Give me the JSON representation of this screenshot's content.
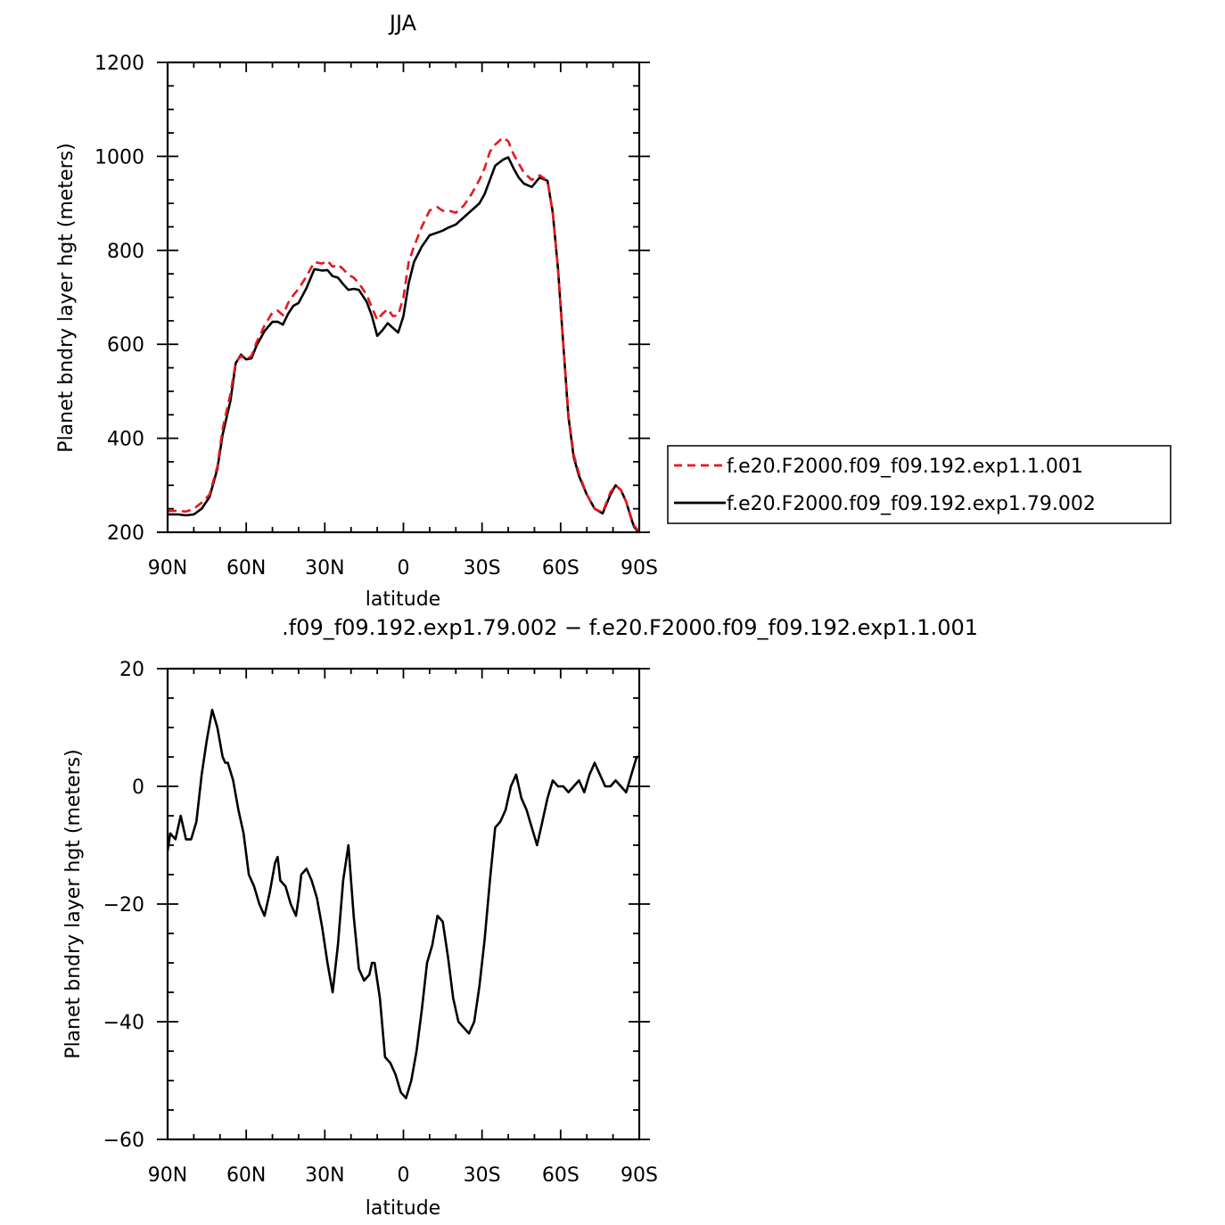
{
  "colors": {
    "case_a": "#e8161c",
    "case_b": "#000000",
    "axis": "#000000",
    "background": "#ffffff"
  },
  "chart_data": [
    {
      "type": "line",
      "title": "JJA",
      "xlabel": "latitude",
      "ylabel": "Planet bndry layer hgt (meters)",
      "xlim": [
        -90,
        90
      ],
      "ylim": [
        200,
        1200
      ],
      "xticks": [
        -90,
        -60,
        -30,
        0,
        30,
        60,
        90
      ],
      "xtick_labels": [
        "90N",
        "60N",
        "30N",
        "0",
        "30S",
        "60S",
        "90S"
      ],
      "yticks": [
        200,
        400,
        600,
        800,
        1000,
        1200
      ],
      "ytick_labels": [
        "200",
        "400",
        "600",
        "800",
        "1000",
        "1200"
      ],
      "grid": false,
      "legend": "right",
      "series": [
        {
          "name": "f.e20.F2000.f09_f09.192.exp1.1.001",
          "style": "dashed",
          "x": [
            -90,
            -86,
            -83,
            -80,
            -77,
            -74,
            -71,
            -69,
            -66,
            -64,
            -62,
            -60,
            -58,
            -56,
            -53,
            -50,
            -48,
            -46,
            -44,
            -42,
            -40,
            -37,
            -34,
            -31,
            -29,
            -27,
            -25,
            -23,
            -21,
            -19,
            -17,
            -14,
            -12,
            -10,
            -8,
            -6,
            -4,
            -2,
            0,
            2,
            4,
            7,
            10,
            13,
            15,
            17,
            20,
            23,
            26,
            29,
            31,
            33,
            35,
            38,
            40,
            42,
            44,
            46,
            49,
            52,
            55,
            57,
            59,
            61,
            63,
            65,
            67,
            70,
            73,
            76,
            79,
            81,
            83,
            85,
            87,
            88,
            90
          ],
          "values": [
            245,
            246,
            244,
            250,
            263,
            280,
            340,
            420,
            495,
            562,
            575,
            568,
            575,
            605,
            640,
            668,
            672,
            662,
            688,
            705,
            718,
            745,
            775,
            772,
            778,
            765,
            770,
            760,
            748,
            742,
            730,
            705,
            678,
            652,
            665,
            675,
            660,
            662,
            700,
            775,
            808,
            850,
            885,
            892,
            884,
            885,
            880,
            895,
            920,
            950,
            975,
            1010,
            1025,
            1040,
            1032,
            1005,
            985,
            965,
            950,
            960,
            948,
            880,
            760,
            600,
            450,
            365,
            325,
            280,
            250,
            242,
            285,
            300,
            290,
            265,
            230,
            215,
            200
          ]
        },
        {
          "name": "f.e20.F2000.f09_f09.192.exp1.79.002",
          "style": "solid",
          "x": [
            -90,
            -86,
            -83,
            -80,
            -77,
            -74,
            -71,
            -69,
            -66,
            -64,
            -62,
            -60,
            -58,
            -56,
            -53,
            -50,
            -48,
            -46,
            -44,
            -42,
            -40,
            -37,
            -34,
            -31,
            -29,
            -27,
            -25,
            -23,
            -21,
            -19,
            -17,
            -14,
            -12,
            -10,
            -8,
            -6,
            -4,
            -2,
            0,
            2,
            4,
            7,
            10,
            13,
            15,
            17,
            20,
            23,
            26,
            29,
            31,
            33,
            35,
            38,
            40,
            42,
            44,
            46,
            49,
            52,
            55,
            57,
            59,
            61,
            63,
            65,
            67,
            70,
            73,
            76,
            79,
            81,
            83,
            85,
            87,
            88,
            90
          ],
          "values": [
            238,
            238,
            236,
            238,
            250,
            275,
            335,
            408,
            480,
            560,
            578,
            568,
            570,
            598,
            628,
            648,
            648,
            642,
            665,
            682,
            688,
            720,
            760,
            757,
            758,
            745,
            742,
            728,
            716,
            718,
            716,
            690,
            660,
            618,
            630,
            645,
            635,
            625,
            660,
            730,
            775,
            808,
            832,
            838,
            842,
            848,
            855,
            870,
            885,
            900,
            920,
            950,
            980,
            993,
            998,
            975,
            955,
            942,
            935,
            955,
            948,
            880,
            760,
            600,
            445,
            360,
            320,
            280,
            250,
            240,
            280,
            300,
            290,
            265,
            228,
            212,
            198
          ]
        }
      ]
    },
    {
      "type": "line",
      "title": ".f09_f09.192.exp1.79.002 − f.e20.F2000.f09_f09.192.exp1.1.001",
      "xlabel": "latitude",
      "ylabel": "Planet bndry layer hgt (meters)",
      "xlim": [
        -90,
        90
      ],
      "ylim": [
        -60,
        20
      ],
      "xticks": [
        -90,
        -60,
        -30,
        0,
        30,
        60,
        90
      ],
      "xtick_labels": [
        "90N",
        "60N",
        "30N",
        "0",
        "30S",
        "60S",
        "90S"
      ],
      "yticks": [
        -60,
        -40,
        -20,
        0,
        20
      ],
      "ytick_labels": [
        "−60",
        "−40",
        "−20",
        "0",
        "20"
      ],
      "grid": false,
      "series": [
        {
          "style": "solid",
          "x": [
            -90,
            -89,
            -87,
            -85,
            -83,
            -81,
            -79,
            -77,
            -75,
            -73,
            -71,
            -69,
            -68,
            -67,
            -65,
            -63,
            -61,
            -59,
            -57,
            -55,
            -53,
            -51,
            -49,
            -48,
            -47,
            -45,
            -43,
            -41,
            -40,
            -39,
            -37,
            -35,
            -33,
            -31,
            -29,
            -27,
            -25,
            -23,
            -21,
            -19,
            -17,
            -15,
            -13,
            -12,
            -11,
            -9,
            -7,
            -5,
            -3,
            -1,
            1,
            3,
            5,
            7,
            9,
            11,
            13,
            15,
            17,
            19,
            21,
            23,
            25,
            27,
            29,
            31,
            33,
            35,
            37,
            39,
            41,
            43,
            45,
            47,
            49,
            51,
            53,
            55,
            57,
            59,
            61,
            63,
            65,
            67,
            69,
            71,
            73,
            75,
            77,
            79,
            81,
            83,
            85,
            87,
            89,
            90
          ],
          "values": [
            -11,
            -8,
            -9,
            -5,
            -9,
            -9,
            -6,
            2,
            8,
            13,
            10,
            5,
            4,
            4,
            1,
            -4,
            -8,
            -15,
            -17,
            -20,
            -22,
            -18,
            -13,
            -12,
            -16,
            -17,
            -20,
            -22,
            -19,
            -15,
            -14,
            -16,
            -19,
            -24,
            -30,
            -35,
            -27,
            -16,
            -10,
            -22,
            -31,
            -33,
            -32,
            -30,
            -30,
            -36,
            -46,
            -47,
            -49,
            -52,
            -53,
            -50,
            -45,
            -38,
            -30,
            -27,
            -22,
            -23,
            -29,
            -36,
            -40,
            -41,
            -42,
            -40,
            -34,
            -26,
            -16,
            -7,
            -6,
            -4,
            0,
            2,
            -2,
            -4,
            -7,
            -10,
            -6,
            -2,
            1,
            0,
            0,
            -1,
            0,
            1,
            -1,
            2,
            4,
            2,
            0,
            0,
            1,
            0,
            -1,
            2,
            5,
            5
          ]
        }
      ]
    }
  ]
}
